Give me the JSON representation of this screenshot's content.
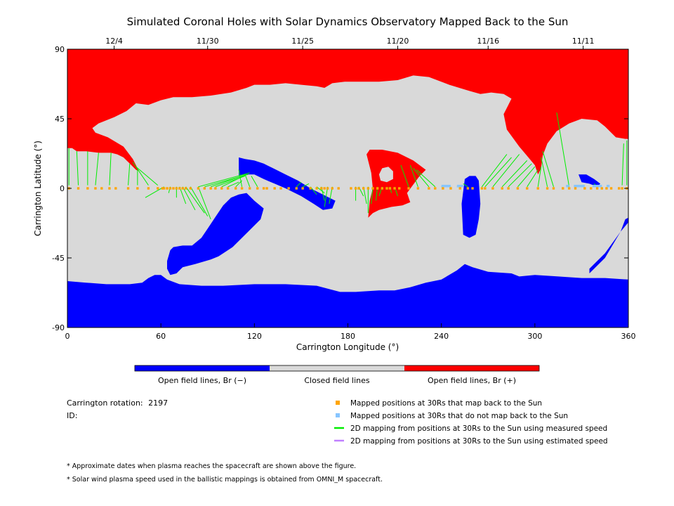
{
  "chart_data": {
    "type": "heatmap",
    "title": "Simulated Coronal Holes with Solar Dynamics Observatory Mapped Back to the Sun",
    "xlabel": "Carrington Longitude (°)",
    "ylabel": "Carrington Latitude (°)",
    "xlim": [
      0,
      360
    ],
    "ylim": [
      -90,
      90
    ],
    "x_ticks": [
      0,
      60,
      120,
      180,
      240,
      300,
      360
    ],
    "y_ticks": [
      -90,
      -45,
      0,
      45,
      90
    ],
    "top_axis_dates": [
      {
        "label": "12/4",
        "lon": 30
      },
      {
        "label": "11/30",
        "lon": 90
      },
      {
        "label": "11/25",
        "lon": 151
      },
      {
        "label": "11/20",
        "lon": 212
      },
      {
        "label": "11/16",
        "lon": 270
      },
      {
        "label": "11/11",
        "lon": 331
      }
    ],
    "colors": {
      "open_negative": "#0000ff",
      "closed": "#d9d9d9",
      "open_positive": "#ff0000",
      "mapped": "#ffa500",
      "unmapped": "#87c5ff",
      "measured_speed": "#00ee00",
      "estimated_speed": "#c080ff"
    },
    "colorbar": [
      {
        "label": "Open field lines, Br (−)",
        "color": "#0000ff"
      },
      {
        "label": "Closed field lines",
        "color": "#d9d9d9"
      },
      {
        "label": "Open field lines, Br (+)",
        "color": "#ff0000"
      }
    ],
    "regions": {
      "north_positive_boundary": [
        [
          0,
          26
        ],
        [
          3,
          26
        ],
        [
          6,
          24
        ],
        [
          12,
          24
        ],
        [
          20,
          23
        ],
        [
          28,
          23
        ],
        [
          32,
          22
        ],
        [
          36,
          20
        ],
        [
          40,
          16
        ],
        [
          44,
          12
        ],
        [
          46,
          11
        ],
        [
          42,
          19
        ],
        [
          36,
          27
        ],
        [
          26,
          33
        ],
        [
          18,
          36
        ],
        [
          16,
          39
        ],
        [
          20,
          42
        ],
        [
          30,
          46
        ],
        [
          38,
          50
        ],
        [
          44,
          55
        ],
        [
          52,
          54
        ],
        [
          60,
          57
        ],
        [
          68,
          59
        ],
        [
          80,
          59
        ],
        [
          92,
          60
        ],
        [
          105,
          62
        ],
        [
          115,
          65
        ],
        [
          120,
          67
        ],
        [
          130,
          67
        ],
        [
          140,
          68
        ],
        [
          150,
          67
        ],
        [
          160,
          66
        ],
        [
          165,
          65
        ],
        [
          170,
          68
        ],
        [
          178,
          69
        ],
        [
          188,
          69
        ],
        [
          200,
          69
        ],
        [
          212,
          70
        ],
        [
          222,
          73
        ],
        [
          232,
          72
        ],
        [
          245,
          67
        ],
        [
          258,
          63
        ],
        [
          265,
          61
        ],
        [
          272,
          62
        ],
        [
          280,
          61
        ],
        [
          285,
          58
        ],
        [
          283,
          54
        ],
        [
          280,
          48
        ],
        [
          282,
          38
        ],
        [
          290,
          27
        ],
        [
          295,
          21
        ],
        [
          300,
          15
        ],
        [
          302,
          9
        ],
        [
          304,
          13
        ],
        [
          305,
          21
        ],
        [
          308,
          29
        ],
        [
          314,
          37
        ],
        [
          322,
          42
        ],
        [
          330,
          45
        ],
        [
          340,
          44
        ],
        [
          345,
          40
        ],
        [
          352,
          33
        ],
        [
          358,
          32
        ],
        [
          360,
          32
        ]
      ],
      "south_negative_boundary": [
        [
          0,
          -60
        ],
        [
          12,
          -61
        ],
        [
          25,
          -62
        ],
        [
          40,
          -62
        ],
        [
          48,
          -61
        ],
        [
          52,
          -58
        ],
        [
          56,
          -56
        ],
        [
          60,
          -56
        ],
        [
          64,
          -59
        ],
        [
          72,
          -62
        ],
        [
          86,
          -63
        ],
        [
          100,
          -63
        ],
        [
          120,
          -62
        ],
        [
          140,
          -62
        ],
        [
          160,
          -63
        ],
        [
          175,
          -67
        ],
        [
          185,
          -67
        ],
        [
          200,
          -66
        ],
        [
          210,
          -66
        ],
        [
          220,
          -64
        ],
        [
          230,
          -61
        ],
        [
          240,
          -59
        ],
        [
          250,
          -53
        ],
        [
          255,
          -49
        ],
        [
          260,
          -51
        ],
        [
          270,
          -54
        ],
        [
          285,
          -55
        ],
        [
          290,
          -57
        ],
        [
          300,
          -56
        ],
        [
          315,
          -57
        ],
        [
          330,
          -58
        ],
        [
          345,
          -58
        ],
        [
          360,
          -59
        ]
      ],
      "neg_hole_left": [
        [
          115,
          -3
        ],
        [
          120,
          -8
        ],
        [
          126,
          -13
        ],
        [
          124,
          -20
        ],
        [
          116,
          -28
        ],
        [
          106,
          -38
        ],
        [
          97,
          -44
        ],
        [
          92,
          -46
        ],
        [
          82,
          -49
        ],
        [
          74,
          -51
        ],
        [
          70,
          -55
        ],
        [
          66,
          -56
        ],
        [
          64,
          -52
        ],
        [
          64,
          -47
        ],
        [
          66,
          -40
        ],
        [
          68,
          -38
        ],
        [
          74,
          -37
        ],
        [
          80,
          -37
        ],
        [
          86,
          -32
        ],
        [
          90,
          -26
        ],
        [
          94,
          -20
        ],
        [
          100,
          -11
        ],
        [
          105,
          -6
        ],
        [
          110,
          -4
        ]
      ],
      "neg_band_mid": [
        [
          110,
          20
        ],
        [
          114,
          19
        ],
        [
          120,
          18
        ],
        [
          126,
          16
        ],
        [
          132,
          13
        ],
        [
          140,
          9
        ],
        [
          148,
          5
        ],
        [
          156,
          0
        ],
        [
          162,
          -3
        ],
        [
          168,
          -6
        ],
        [
          172,
          -8
        ],
        [
          170,
          -13
        ],
        [
          164,
          -14
        ],
        [
          158,
          -10
        ],
        [
          150,
          -5
        ],
        [
          140,
          0
        ],
        [
          133,
          3
        ],
        [
          126,
          6
        ],
        [
          120,
          9
        ],
        [
          114,
          9
        ],
        [
          110,
          8
        ]
      ],
      "neg_lens_right": [
        [
          255,
          6
        ],
        [
          258,
          8
        ],
        [
          262,
          8
        ],
        [
          264,
          5
        ],
        [
          265,
          -10
        ],
        [
          264,
          -20
        ],
        [
          262,
          -30
        ],
        [
          258,
          -32
        ],
        [
          254,
          -30
        ],
        [
          253,
          -10
        ]
      ],
      "neg_small_right": [
        [
          328,
          9
        ],
        [
          333,
          9
        ],
        [
          338,
          6
        ],
        [
          342,
          3
        ],
        [
          340,
          1
        ],
        [
          335,
          3
        ],
        [
          330,
          4
        ]
      ],
      "neg_sliver_far_right": [
        [
          335,
          -55
        ],
        [
          345,
          -45
        ],
        [
          355,
          -28
        ],
        [
          358,
          -20
        ],
        [
          360,
          -19
        ],
        [
          360,
          -22
        ],
        [
          355,
          -28
        ],
        [
          345,
          -42
        ],
        [
          335,
          -52
        ]
      ],
      "pos_region_middle": [
        [
          193,
          -19
        ],
        [
          196,
          -16
        ],
        [
          200,
          -14
        ],
        [
          208,
          -12
        ],
        [
          215,
          -11
        ],
        [
          220,
          -9
        ],
        [
          218,
          -3
        ],
        [
          226,
          8
        ],
        [
          230,
          12
        ],
        [
          222,
          18
        ],
        [
          212,
          23
        ],
        [
          202,
          25
        ],
        [
          194,
          25
        ],
        [
          192,
          22
        ],
        [
          195,
          10
        ],
        [
          196,
          0
        ],
        [
          194,
          -8
        ]
      ],
      "pos_hole_gray": [
        [
          201,
          5
        ],
        [
          205,
          4
        ],
        [
          209,
          6
        ],
        [
          209,
          11
        ],
        [
          206,
          14
        ],
        [
          202,
          13
        ],
        [
          200,
          9
        ]
      ]
    },
    "mapped_points_lon": [
      1,
      7,
      13,
      18,
      22,
      27,
      31,
      39,
      45,
      52,
      58,
      61,
      62,
      64,
      66,
      68,
      70,
      72,
      74,
      76,
      79,
      84,
      88,
      92,
      95,
      99,
      103,
      108,
      112,
      117,
      122,
      126,
      128,
      133,
      137,
      142,
      147,
      151,
      156,
      160,
      163,
      165,
      167,
      170,
      174,
      182,
      185,
      187,
      190,
      193,
      196,
      199,
      202,
      205,
      207,
      210,
      213,
      219,
      225,
      232,
      236,
      241,
      246,
      252,
      257,
      260,
      266,
      268,
      273,
      279,
      283,
      289,
      295,
      302,
      308,
      312,
      318,
      322,
      326,
      332,
      336,
      340,
      343,
      346,
      349,
      354,
      356,
      359
    ],
    "unmapped_segments_lon": [
      [
        240,
        246
      ],
      [
        250,
        254
      ],
      [
        320,
        322
      ],
      [
        325,
        332
      ],
      [
        337,
        343
      ],
      [
        346,
        348
      ]
    ],
    "mapping_lines": [
      [
        1,
        26,
        1,
        2
      ],
      [
        6,
        24,
        7,
        2
      ],
      [
        13,
        24,
        13,
        2
      ],
      [
        20,
        23,
        18,
        2
      ],
      [
        28,
        23,
        27,
        2
      ],
      [
        40,
        16,
        39,
        2
      ],
      [
        45,
        12,
        45,
        2
      ],
      [
        42,
        17,
        52,
        2
      ],
      [
        44,
        14,
        58,
        2
      ],
      [
        50,
        -6,
        62,
        1
      ],
      [
        65,
        -3,
        66,
        1
      ],
      [
        70,
        -6,
        70,
        1
      ],
      [
        76,
        -10,
        72,
        1
      ],
      [
        82,
        -14,
        74,
        1
      ],
      [
        88,
        -16,
        76,
        1
      ],
      [
        90,
        -18,
        79,
        1
      ],
      [
        92,
        -20,
        84,
        1
      ],
      [
        110,
        12,
        112,
        1
      ],
      [
        114,
        9,
        117,
        1
      ],
      [
        118,
        8,
        122,
        1
      ],
      [
        112,
        5,
        108,
        1
      ],
      [
        110,
        4,
        103,
        1
      ],
      [
        113,
        8,
        99,
        1
      ],
      [
        114,
        8,
        95,
        1
      ],
      [
        115,
        9,
        92,
        1
      ],
      [
        116,
        9,
        88,
        1
      ],
      [
        117,
        10,
        84,
        1
      ],
      [
        150,
        4,
        147,
        1
      ],
      [
        155,
        3,
        151,
        1
      ],
      [
        160,
        -4,
        156,
        1
      ],
      [
        165,
        -3,
        160,
        1
      ],
      [
        165,
        -8,
        163,
        1
      ],
      [
        165,
        -12,
        167,
        1
      ],
      [
        168,
        -10,
        170,
        1
      ],
      [
        185,
        -8,
        185,
        1
      ],
      [
        190,
        -5,
        187,
        1
      ],
      [
        192,
        -10,
        190,
        1
      ],
      [
        193,
        -16,
        193,
        1
      ],
      [
        195,
        -10,
        196,
        1
      ],
      [
        198,
        -8,
        199,
        1
      ],
      [
        200,
        -5,
        202,
        1
      ],
      [
        205,
        -1,
        205,
        1
      ],
      [
        208,
        -3,
        207,
        1
      ],
      [
        212,
        -5,
        210,
        1
      ],
      [
        214,
        15,
        219,
        1
      ],
      [
        220,
        15,
        225,
        1
      ],
      [
        222,
        13,
        232,
        1
      ],
      [
        224,
        12,
        236,
        1
      ],
      [
        240,
        1,
        241,
        1
      ],
      [
        245,
        2,
        246,
        1
      ],
      [
        250,
        1,
        252,
        1
      ],
      [
        254,
        3,
        257,
        1
      ],
      [
        282,
        22,
        266,
        1
      ],
      [
        285,
        20,
        268,
        1
      ],
      [
        290,
        22,
        273,
        1
      ],
      [
        295,
        18,
        279,
        1
      ],
      [
        298,
        16,
        283,
        1
      ],
      [
        300,
        14,
        289,
        1
      ],
      [
        302,
        12,
        295,
        1
      ],
      [
        304,
        14,
        302,
        1
      ],
      [
        304,
        20,
        308,
        1
      ],
      [
        305,
        24,
        312,
        1
      ],
      [
        314,
        49,
        322,
        1
      ],
      [
        338,
        3,
        340,
        1
      ],
      [
        357,
        29,
        356,
        2
      ],
      [
        359,
        31,
        359,
        2
      ]
    ],
    "legend_markers": [
      {
        "label": "Mapped positions at 30Rs that map back to the Sun",
        "kind": "square",
        "color": "#ffa500"
      },
      {
        "label": "Mapped positions at 30Rs that do not map back to the Sun",
        "kind": "square",
        "color": "#87c5ff"
      },
      {
        "label": "2D mapping from positions at 30Rs to the Sun using measured speed",
        "kind": "line",
        "color": "#00ee00"
      },
      {
        "label": "2D mapping from positions at 30Rs to the Sun using estimated speed",
        "kind": "line",
        "color": "#c080ff"
      }
    ]
  },
  "info": {
    "rotation_label": "Carrington rotation:",
    "rotation_value": "2197",
    "id_label": "ID:",
    "id_value": ""
  },
  "footnotes": [
    "* Approximate dates when plasma reaches the spacecraft are shown above the figure.",
    "* Solar wind plasma speed used in the ballistic mappings is obtained from OMNI_M spacecraft."
  ]
}
